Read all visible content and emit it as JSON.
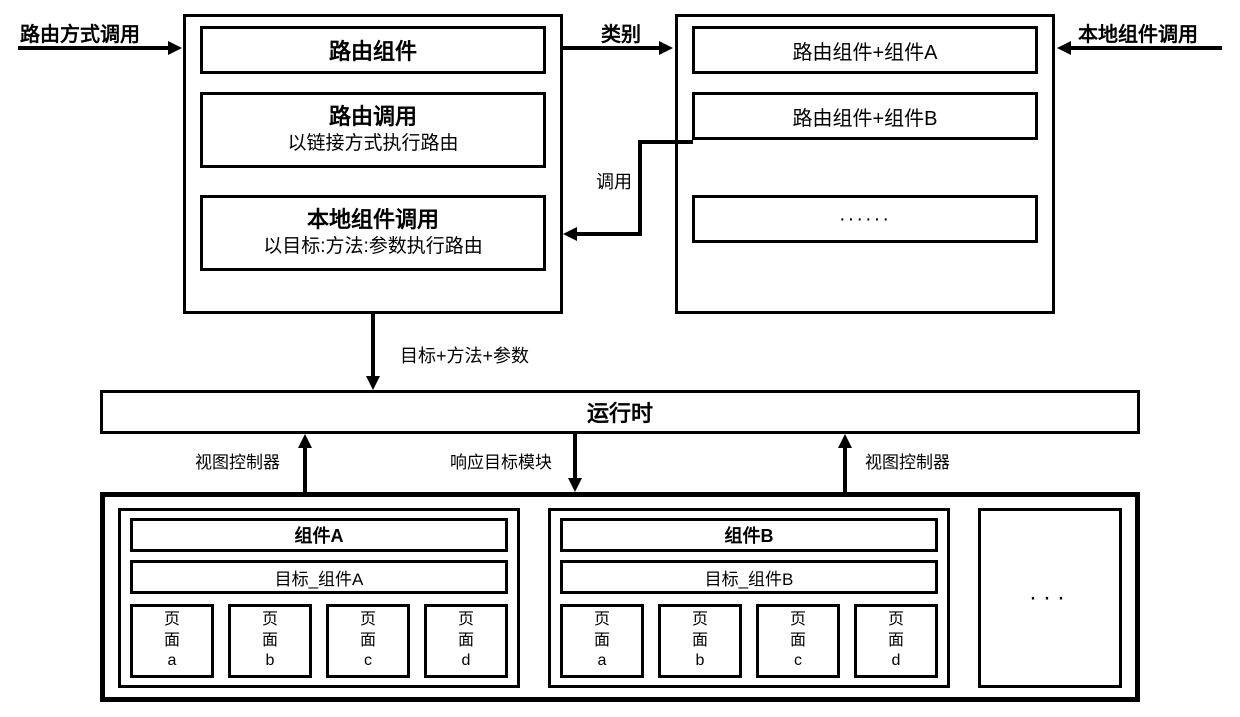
{
  "diagram": {
    "type": "flowchart",
    "background_color": "#ffffff",
    "border_color": "#000000",
    "border_width": 3,
    "font_family": "SimSun",
    "label_fontsize_main": 20,
    "label_fontsize_small": 17,
    "labels": {
      "route_call_in": "路由方式调用",
      "local_call_in": "本地组件调用",
      "category": "类别",
      "invoke": "调用",
      "target_method_param": "目标+方法+参数",
      "runtime": "运行时",
      "view_controller_left": "视图控制器",
      "view_controller_right": "视图控制器",
      "respond_target": "响应目标模块"
    },
    "left_panel": {
      "box1": "路由组件",
      "box2_line1": "路由调用",
      "box2_line2": "以链接方式执行路由",
      "box3_line1": "本地组件调用",
      "box3_line2": "以目标:方法:参数执行路由"
    },
    "right_panel": {
      "row1": "路由组件+组件A",
      "row2": "路由组件+组件B",
      "row3": "······"
    },
    "bottom_panel": {
      "comp_a": {
        "title": "组件A",
        "target": "目标_组件A",
        "pages": [
          "页面a",
          "页面b",
          "页面c",
          "页面d"
        ]
      },
      "comp_b": {
        "title": "组件B",
        "target": "目标_组件B",
        "pages": [
          "页面a",
          "页面b",
          "页面c",
          "页面d"
        ]
      },
      "ellipsis": "···"
    }
  }
}
